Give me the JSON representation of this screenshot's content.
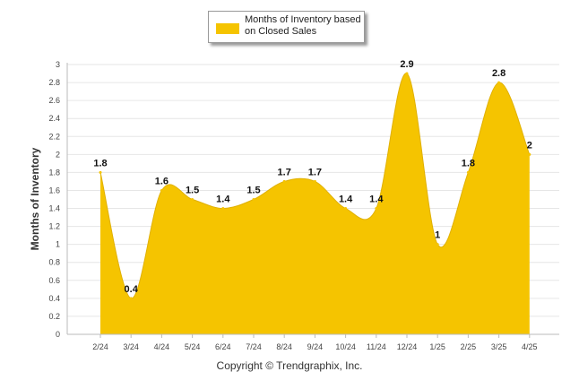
{
  "chart_data": {
    "type": "area",
    "title": "",
    "xlabel": "",
    "ylabel": "Months of Inventory",
    "ylim": [
      0,
      3
    ],
    "yticks": [
      "0",
      "0.2",
      "0.4",
      "0.6",
      "0.8",
      "1",
      "1.2",
      "1.4",
      "1.6",
      "1.8",
      "2",
      "2.2",
      "2.4",
      "2.6",
      "2.8",
      "3"
    ],
    "categories": [
      "2/24",
      "3/24",
      "4/24",
      "5/24",
      "6/24",
      "7/24",
      "8/24",
      "9/24",
      "10/24",
      "11/24",
      "12/24",
      "1/25",
      "2/25",
      "3/25",
      "4/25"
    ],
    "series": [
      {
        "name": "Months of Inventory based on Closed Sales",
        "color": "#f5c400",
        "values": [
          1.8,
          0.4,
          1.6,
          1.5,
          1.4,
          1.5,
          1.7,
          1.7,
          1.4,
          1.4,
          2.9,
          1,
          1.8,
          2.8,
          2
        ],
        "labels": [
          "1.8",
          "0.4",
          "1.6",
          "1.5",
          "1.4",
          "1.5",
          "1.7",
          "1.7",
          "1.4",
          "1.4",
          "2.9",
          "1",
          "1.8",
          "2.8",
          "2"
        ]
      }
    ],
    "grid": true,
    "legend_position": "top-center"
  },
  "legend": {
    "label": "Months of Inventory based on Closed Sales",
    "color": "#f5c400"
  },
  "footer": {
    "copyright": "Copyright © Trendgraphix, Inc."
  }
}
